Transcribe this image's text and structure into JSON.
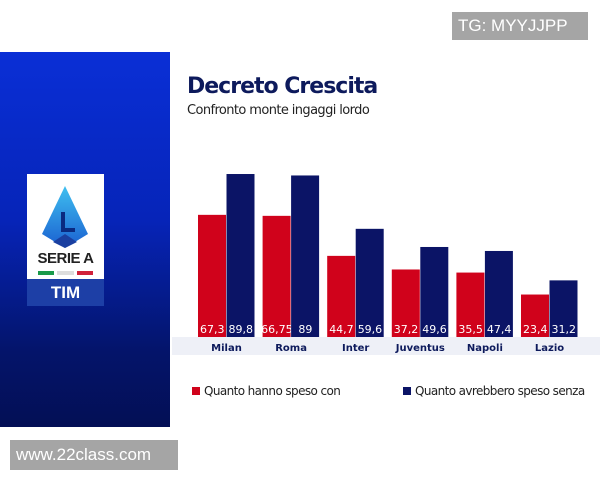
{
  "watermarks": {
    "top": "TG: MYYJJPP",
    "bottom": "www.22class.com"
  },
  "logo": {
    "text": "SERIE A",
    "sponsor": "TIM"
  },
  "chart_data": {
    "type": "bar",
    "title": "Decreto Crescita",
    "subtitle": "Confronto monte ingaggi lordo",
    "categories": [
      "Milan",
      "Roma",
      "Inter",
      "Juventus",
      "Napoli",
      "Lazio"
    ],
    "series": [
      {
        "name": "Quanto hanno speso con",
        "color": "#d0021b",
        "values": [
          67.3,
          66.75,
          44.7,
          37.2,
          35.5,
          23.4
        ],
        "labels": [
          "67,3",
          "66,75",
          "44,7",
          "37,2",
          "35,5",
          "23,4"
        ]
      },
      {
        "name": "Quanto avrebbero speso senza",
        "color": "#0b1466",
        "values": [
          89.8,
          89,
          59.6,
          49.6,
          47.4,
          31.2
        ],
        "labels": [
          "89,8",
          "89",
          "59,6",
          "49,6",
          "47,4",
          "31,2"
        ]
      }
    ],
    "legend": "bottom",
    "grid": false
  }
}
